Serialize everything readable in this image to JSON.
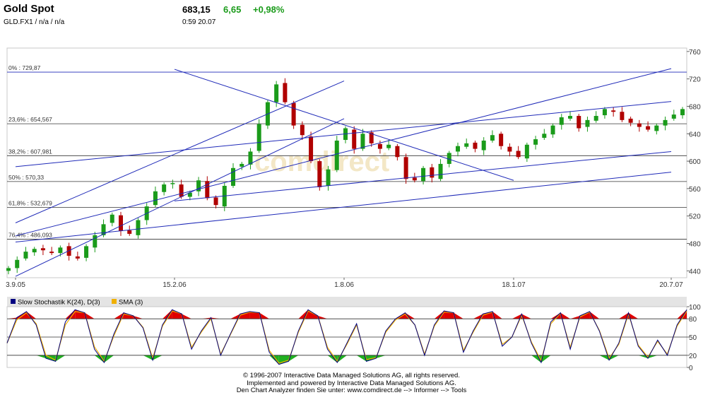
{
  "header": {
    "title": "Gold Spot",
    "symbol": "GLD.FX1  /  n/a  /  n/a",
    "price": "683,15",
    "change": "6,65",
    "change_pct": "+0,98%",
    "time": "0:59   20.07"
  },
  "colors": {
    "up_candle": "#1a9b1a",
    "down_candle": "#b00000",
    "trend_line": "#1f2ab8",
    "stoch_line": "#000080",
    "sma_line": "#f0b000",
    "overbought_fill": "#e00000",
    "oversold_fill": "#20b020",
    "panel_bg": "#e4e4e4"
  },
  "chart_data": [
    {
      "type": "line",
      "subtype": "candlestick",
      "ylim": [
        430,
        765
      ],
      "y_ticks": [
        "760",
        "720",
        "680",
        "640",
        "600",
        "560",
        "520",
        "480",
        "440"
      ],
      "x_ticks": [
        "3.9.05",
        "15.2.06",
        "1.8.06",
        "18.1.07",
        "20.7.07"
      ],
      "grid": "horizontal lines at fibonacci levels",
      "watermark": "comdirect",
      "fibonacci_levels": [
        {
          "label": "0% : 729,87",
          "value": 729.87
        },
        {
          "label": "23,6% : 654,567",
          "value": 654.567
        },
        {
          "label": "38,2% : 607,981",
          "value": 607.981
        },
        {
          "label": "50% : 570,33",
          "value": 570.33
        },
        {
          "label": "61,8% : 532,679",
          "value": 532.679
        },
        {
          "label": "76,4% : 486,093",
          "value": 486.093
        }
      ],
      "series": [
        {
          "approx_close": [
            444,
            456,
            468,
            472,
            470,
            466,
            474,
            462,
            458,
            476,
            492,
            508,
            522,
            498,
            494,
            514,
            534,
            556,
            566,
            568,
            548,
            554,
            572,
            546,
            536,
            564,
            590,
            596,
            614,
            654,
            686,
            712,
            686,
            652,
            638,
            600,
            562,
            588,
            630,
            648,
            618,
            640,
            626,
            618,
            624,
            606,
            574,
            572,
            590,
            576,
            596,
            612,
            622,
            626,
            618,
            630,
            638,
            622,
            614,
            606,
            624,
            632,
            640,
            652,
            664,
            666,
            648,
            660,
            666,
            676,
            672,
            660,
            656,
            650,
            646,
            652,
            660,
            668,
            676
          ]
        }
      ],
      "trend_lines": [
        {
          "from": [
            "3.9.05",
            491
          ],
          "to": [
            "20.7.07",
            735
          ]
        },
        {
          "from": [
            "3.9.05",
            482
          ],
          "to": [
            "20.7.07",
            584
          ]
        },
        {
          "from": [
            "3.9.05",
            432
          ],
          "to": [
            "1.8.06",
            662
          ]
        },
        {
          "from": [
            "3.9.05",
            592
          ],
          "to": [
            "20.7.07",
            687
          ]
        },
        {
          "from": [
            "3.9.05",
            510
          ],
          "to": [
            "1.8.06",
            717
          ]
        },
        {
          "from": [
            "15.2.06",
            734
          ],
          "to": [
            "18.1.07",
            572
          ]
        },
        {
          "from": [
            "15.2.06",
            542
          ],
          "to": [
            "20.7.07",
            614
          ]
        }
      ]
    },
    {
      "type": "line",
      "title": "",
      "legend": [
        "Slow Stochastik K(24), D(3)",
        "SMA (3)"
      ],
      "legend_placement": "top-left",
      "ylim": [
        0,
        100
      ],
      "y_ticks": [
        "100",
        "80",
        "50",
        "20",
        "0"
      ],
      "series": [
        {
          "name": "Slow Stochastik K(24), D(3)",
          "values": [
            40,
            82,
            92,
            70,
            15,
            10,
            75,
            95,
            90,
            30,
            8,
            55,
            90,
            85,
            65,
            12,
            70,
            95,
            88,
            30,
            60,
            82,
            20,
            55,
            88,
            92,
            90,
            25,
            5,
            10,
            60,
            95,
            85,
            30,
            8,
            40,
            72,
            10,
            15,
            60,
            80,
            90,
            70,
            20,
            70,
            93,
            90,
            25,
            60,
            88,
            92,
            35,
            50,
            88,
            40,
            8,
            75,
            90,
            30,
            85,
            92,
            60,
            12,
            40,
            90,
            35,
            15,
            45,
            20,
            70,
            95
          ]
        },
        {
          "name": "SMA (3)",
          "values": [
            40,
            78,
            90,
            72,
            20,
            12,
            70,
            92,
            90,
            34,
            10,
            52,
            88,
            85,
            66,
            15,
            68,
            93,
            88,
            33,
            58,
            80,
            22,
            54,
            86,
            91,
            90,
            28,
            7,
            12,
            58,
            93,
            85,
            33,
            10,
            38,
            70,
            13,
            16,
            58,
            78,
            88,
            70,
            22,
            68,
            91,
            90,
            28,
            58,
            86,
            91,
            38,
            50,
            86,
            42,
            11,
            72,
            89,
            33,
            83,
            91,
            61,
            15,
            38,
            88,
            37,
            17,
            43,
            22,
            68,
            93
          ]
        }
      ]
    }
  ],
  "footer": {
    "line1": "© 1996-2007 Interactive Data Managed Solutions AG, all rights reserved.",
    "line2": "Implemented and powered by Interactive Data Managed Solutions AG.",
    "line3": "Den Chart Analyzer finden Sie unter: www.comdirect.de --> Informer --> Tools"
  }
}
